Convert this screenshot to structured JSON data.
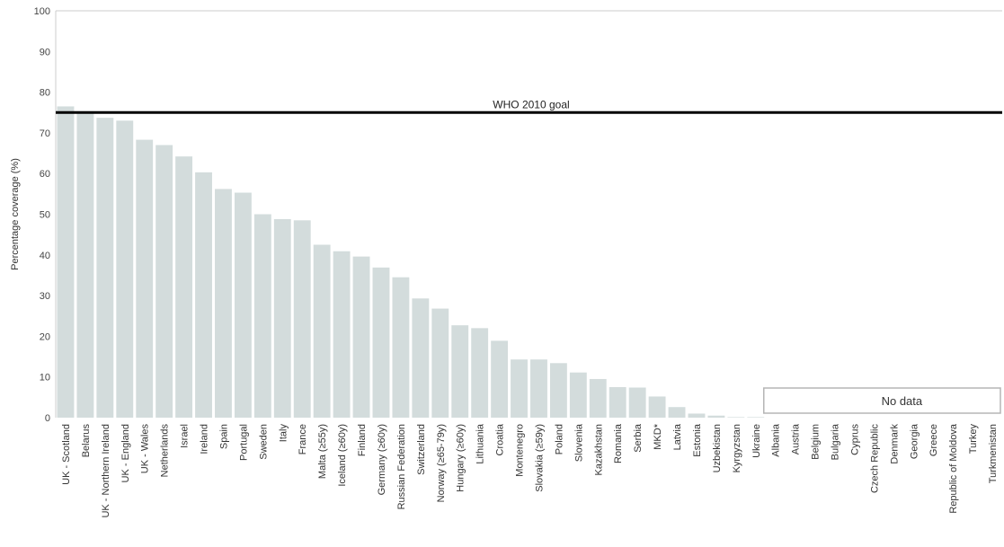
{
  "chart_data": {
    "type": "bar",
    "ylabel": "Percentage coverage (%)",
    "xlabel": "",
    "title": "",
    "ylim": [
      0,
      100
    ],
    "yticks": [
      0,
      10,
      20,
      30,
      40,
      50,
      60,
      70,
      80,
      90,
      100
    ],
    "grid": false,
    "categories": [
      "UK - Scotland",
      "Belarus",
      "UK - Northern Ireland",
      "UK - England",
      "UK - Wales",
      "Netherlands",
      "Israel",
      "Ireland",
      "Spain",
      "Portugal",
      "Sweden",
      "Italy",
      "France",
      "Malta (≥55y)",
      "Iceland (≥60y)",
      "Finland",
      "Germany (≥60y)",
      "Russian Federation",
      "Switzerland",
      "Norway (≥65-79y)",
      "Hungary (≥60y)",
      "Lithuania",
      "Croatia",
      "Montenegro",
      "Slovakia (≥59y)",
      "Poland",
      "Slovenia",
      "Kazakhstan",
      "Romania",
      "Serbia",
      "MKD*",
      "Latvia",
      "Estonia",
      "Uzbekistan",
      "Kyrgyzstan",
      "Ukraine",
      "Albania",
      "Austria",
      "Belgium",
      "Bulgaria",
      "Cyprus",
      "Czech Republic",
      "Denmark",
      "Georgia",
      "Greece",
      "Republic of Moldova",
      "Turkey",
      "Turkmenistan"
    ],
    "values": [
      76.5,
      75.3,
      73.7,
      73.0,
      68.3,
      67.0,
      64.2,
      60.3,
      56.2,
      55.3,
      50.0,
      48.8,
      48.5,
      42.5,
      40.9,
      39.6,
      36.9,
      34.5,
      29.3,
      26.8,
      22.7,
      22.0,
      18.9,
      14.3,
      14.3,
      13.4,
      11.1,
      9.5,
      7.5,
      7.4,
      5.2,
      2.6,
      1.0,
      0.5,
      0.1,
      0.1,
      null,
      null,
      null,
      null,
      null,
      null,
      null,
      null,
      null,
      null,
      null,
      null
    ],
    "reference_line": {
      "label": "WHO 2010 goal",
      "value": 75
    },
    "no_data_label": "No data",
    "colors": {
      "bar": "#d3dcdc",
      "goal_line": "#000000",
      "axis": "#cccccc"
    }
  }
}
